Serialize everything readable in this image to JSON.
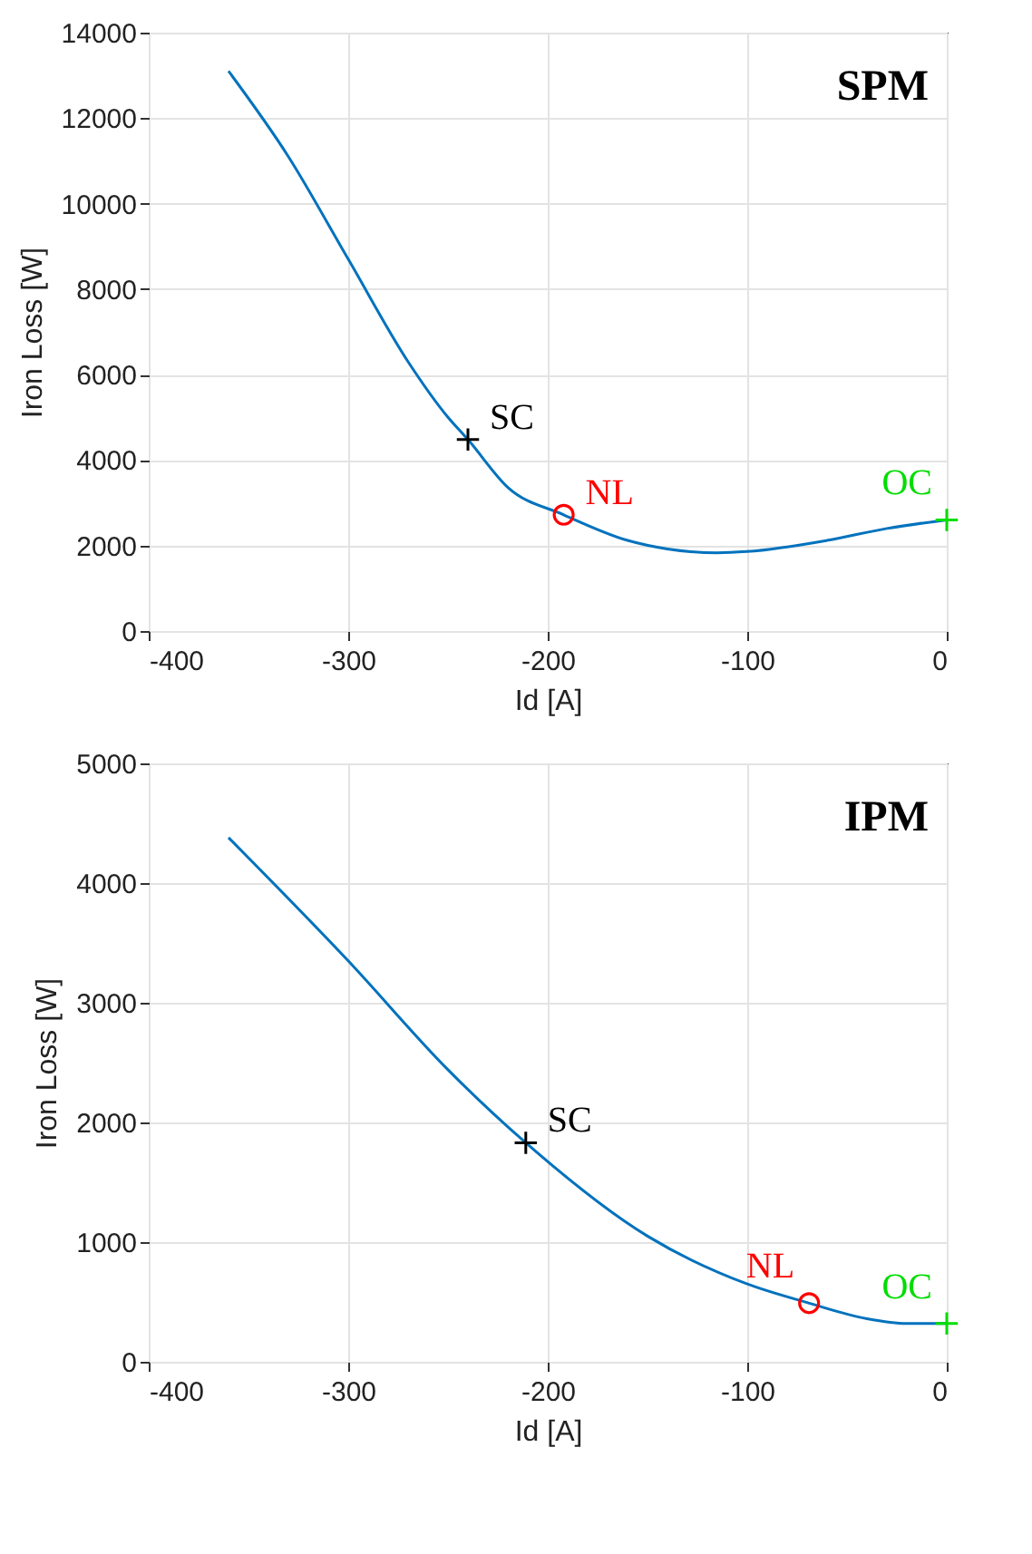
{
  "chart_data": [
    {
      "type": "line",
      "title": "SPM",
      "xlabel": "Id [A]",
      "ylabel": "Iron Loss [W]",
      "xlim": [
        -400,
        0
      ],
      "ylim": [
        0,
        14000
      ],
      "xticks": [
        -400,
        -300,
        -200,
        -100,
        0
      ],
      "yticks": [
        0,
        2000,
        4000,
        6000,
        8000,
        10000,
        12000,
        14000
      ],
      "grid": true,
      "x": [
        -360,
        -330,
        -300,
        -270,
        -250,
        -240,
        -220,
        -192,
        -160,
        -140,
        -115,
        -100,
        -60,
        -30,
        0
      ],
      "series": [
        {
          "color": "#0072bd",
          "values": [
            13100,
            11100,
            8700,
            6300,
            5000,
            4480,
            3360,
            2720,
            2120,
            1920,
            1830,
            1860,
            2120,
            2400,
            2600
          ]
        },
        {
          "name": "SC",
          "type": "scatter",
          "marker": "cross",
          "color": "#000000",
          "x": [
            -240
          ],
          "values": [
            4480
          ]
        },
        {
          "name": "NL",
          "type": "scatter",
          "marker": "circle",
          "color": "#ff0000",
          "x": [
            -192
          ],
          "values": [
            2720
          ]
        },
        {
          "name": "OC",
          "type": "scatter",
          "marker": "cross",
          "color": "#00dd00",
          "x": [
            0
          ],
          "values": [
            2600
          ]
        }
      ]
    },
    {
      "type": "line",
      "title": "IPM",
      "xlabel": "Id [A]",
      "ylabel": "Iron Loss [W]",
      "xlim": [
        -400,
        0
      ],
      "ylim": [
        0,
        5000
      ],
      "xticks": [
        -400,
        -300,
        -200,
        -100,
        0
      ],
      "yticks": [
        0,
        1000,
        2000,
        3000,
        4000,
        5000
      ],
      "grid": true,
      "x": [
        -360,
        -300,
        -250,
        -211,
        -150,
        -100,
        -69,
        -40,
        -20,
        0
      ],
      "series": [
        {
          "color": "#0072bd",
          "values": [
            4380,
            3350,
            2440,
            1830,
            1050,
            650,
            490,
            360,
            320,
            320
          ]
        },
        {
          "name": "SC",
          "type": "scatter",
          "marker": "cross",
          "color": "#000000",
          "x": [
            -211
          ],
          "values": [
            1830
          ]
        },
        {
          "name": "NL",
          "type": "scatter",
          "marker": "circle",
          "color": "#ff0000",
          "x": [
            -69
          ],
          "values": [
            490
          ]
        },
        {
          "name": "OC",
          "type": "scatter",
          "marker": "cross",
          "color": "#00dd00",
          "x": [
            0
          ],
          "values": [
            320
          ]
        }
      ]
    }
  ]
}
